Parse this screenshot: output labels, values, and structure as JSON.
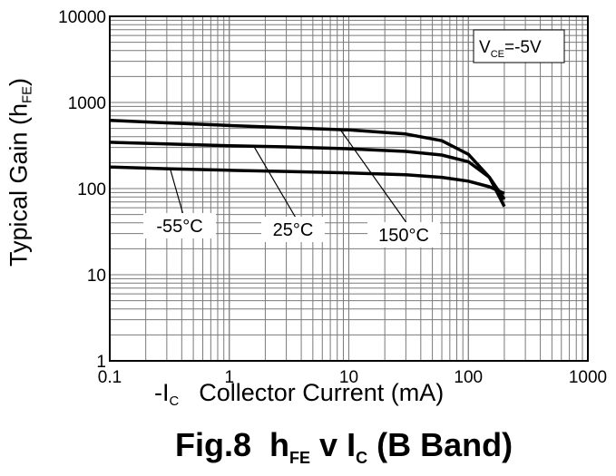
{
  "chart_data": {
    "type": "line",
    "title": "Fig.8 hFE v IC (B Band)",
    "title_parts": {
      "prefix": "Fig.8",
      "h": "h",
      "h_sub": "FE",
      "v": "v",
      "i": "I",
      "i_sub": "C",
      "suffix": "(B Band)"
    },
    "xlabel": "-IC Collector Current (mA)",
    "xlabel_parts": {
      "pre": "-I",
      "sub": "C",
      "text": "Collector Current (mA)"
    },
    "ylabel": "Typical Gain (hFE)",
    "ylabel_parts": {
      "text": "Typical Gain (h",
      "sub": "FE",
      "close": ")"
    },
    "x_scale": "log",
    "y_scale": "log",
    "xlim": [
      0.1,
      1000
    ],
    "ylim": [
      1,
      10000
    ],
    "x_ticks": [
      "0.1",
      "1",
      "10",
      "100",
      "1000"
    ],
    "y_ticks": [
      "1",
      "10",
      "100",
      "1000",
      "10000"
    ],
    "grid": true,
    "annotation": {
      "text": "V",
      "sub": "CE",
      "rest": "=-5V"
    },
    "series": [
      {
        "name": "150°C",
        "x": [
          0.1,
          0.3,
          1,
          3,
          10,
          30,
          60,
          100,
          150,
          200
        ],
        "y": [
          620,
          580,
          540,
          510,
          480,
          430,
          360,
          250,
          135,
          62
        ]
      },
      {
        "name": "25°C",
        "x": [
          0.1,
          0.3,
          1,
          3,
          10,
          30,
          60,
          100,
          150,
          200
        ],
        "y": [
          345,
          330,
          315,
          305,
          290,
          270,
          245,
          205,
          135,
          75
        ]
      },
      {
        "name": "-55°C",
        "x": [
          0.1,
          0.3,
          1,
          3,
          10,
          30,
          60,
          100,
          150,
          200
        ],
        "y": [
          178,
          170,
          163,
          158,
          152,
          145,
          135,
          122,
          105,
          88
        ]
      }
    ]
  }
}
